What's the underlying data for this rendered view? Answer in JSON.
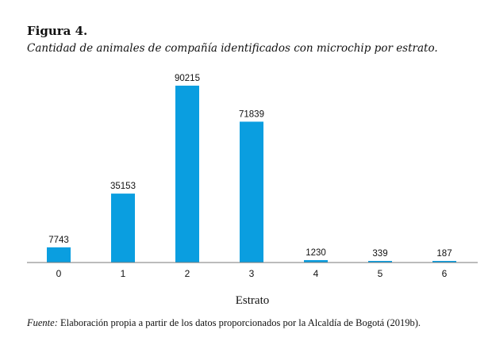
{
  "figure": {
    "label": "Figura 4.",
    "title": "Cantidad de animales de compañía identificados con microchip por estrato."
  },
  "source": {
    "prefix": "Fuente:",
    "text": " Elaboración propia a partir de los datos proporcionados por la Alcaldía de Bogotá (2019b)."
  },
  "chart_data": {
    "type": "bar",
    "categories": [
      "0",
      "1",
      "2",
      "3",
      "4",
      "5",
      "6"
    ],
    "values": [
      7743,
      35153,
      90215,
      71839,
      1230,
      339,
      187
    ],
    "data_labels": [
      "7743",
      "35153",
      "90215",
      "71839",
      "1230",
      "339",
      "187"
    ],
    "xlabel": "Estrato",
    "ylabel": "",
    "ylim": [
      0,
      90215
    ],
    "grid": false,
    "legend": "none",
    "bar_color": "#0a9ee0",
    "axis_color": "#7a7a7a"
  }
}
